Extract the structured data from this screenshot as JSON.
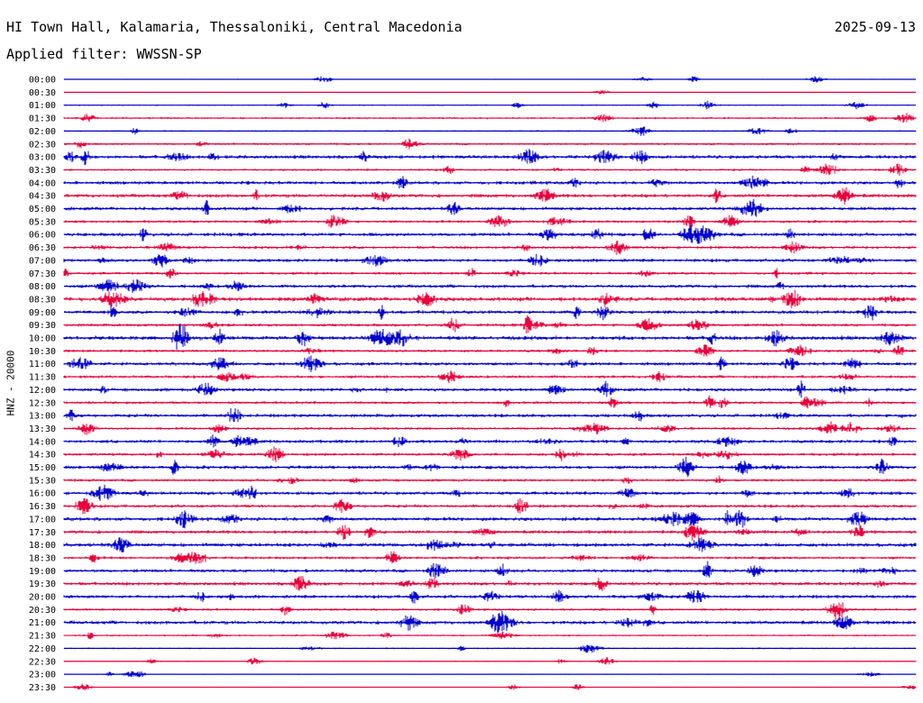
{
  "header": {
    "station": "HI Town Hall, Kalamaria, Thessaloniki, Central Macedonia",
    "date": "2025-09-13",
    "filter": "Applied filter: WWSSN-SP"
  },
  "chart_data": {
    "type": "line",
    "title": "HI Town Hall, Kalamaria, Thessaloniki, Central Macedonia",
    "ylabel": "HNZ - 20000",
    "xlabel": "",
    "colors": [
      "#0000cc",
      "#e8003c"
    ],
    "ytick_labels": [
      "00:00",
      "00:30",
      "01:00",
      "01:30",
      "02:00",
      "02:30",
      "03:00",
      "03:30",
      "04:00",
      "04:30",
      "05:00",
      "05:30",
      "06:00",
      "06:30",
      "07:00",
      "07:30",
      "08:00",
      "08:30",
      "09:00",
      "09:30",
      "10:00",
      "10:30",
      "11:00",
      "11:30",
      "12:00",
      "12:30",
      "13:00",
      "13:30",
      "14:00",
      "14:30",
      "15:00",
      "15:30",
      "16:00",
      "16:30",
      "17:00",
      "17:30",
      "18:00",
      "18:30",
      "19:00",
      "19:30",
      "20:00",
      "20:30",
      "21:00",
      "21:30",
      "22:00",
      "22:30",
      "23:00",
      "23:30"
    ],
    "noise_levels": [
      0.4,
      0.3,
      0.6,
      0.9,
      0.7,
      1.0,
      1.6,
      1.0,
      1.5,
      1.6,
      1.5,
      1.2,
      1.6,
      1.3,
      1.5,
      1.2,
      1.5,
      1.8,
      1.6,
      1.3,
      1.8,
      1.2,
      1.5,
      1.3,
      1.5,
      1.2,
      1.5,
      1.2,
      1.5,
      1.3,
      1.5,
      1.2,
      1.5,
      1.4,
      1.7,
      1.5,
      1.7,
      1.2,
      1.5,
      1.5,
      1.5,
      1.1,
      1.6,
      0.8,
      0.7,
      0.5,
      0.4,
      0.4
    ]
  }
}
